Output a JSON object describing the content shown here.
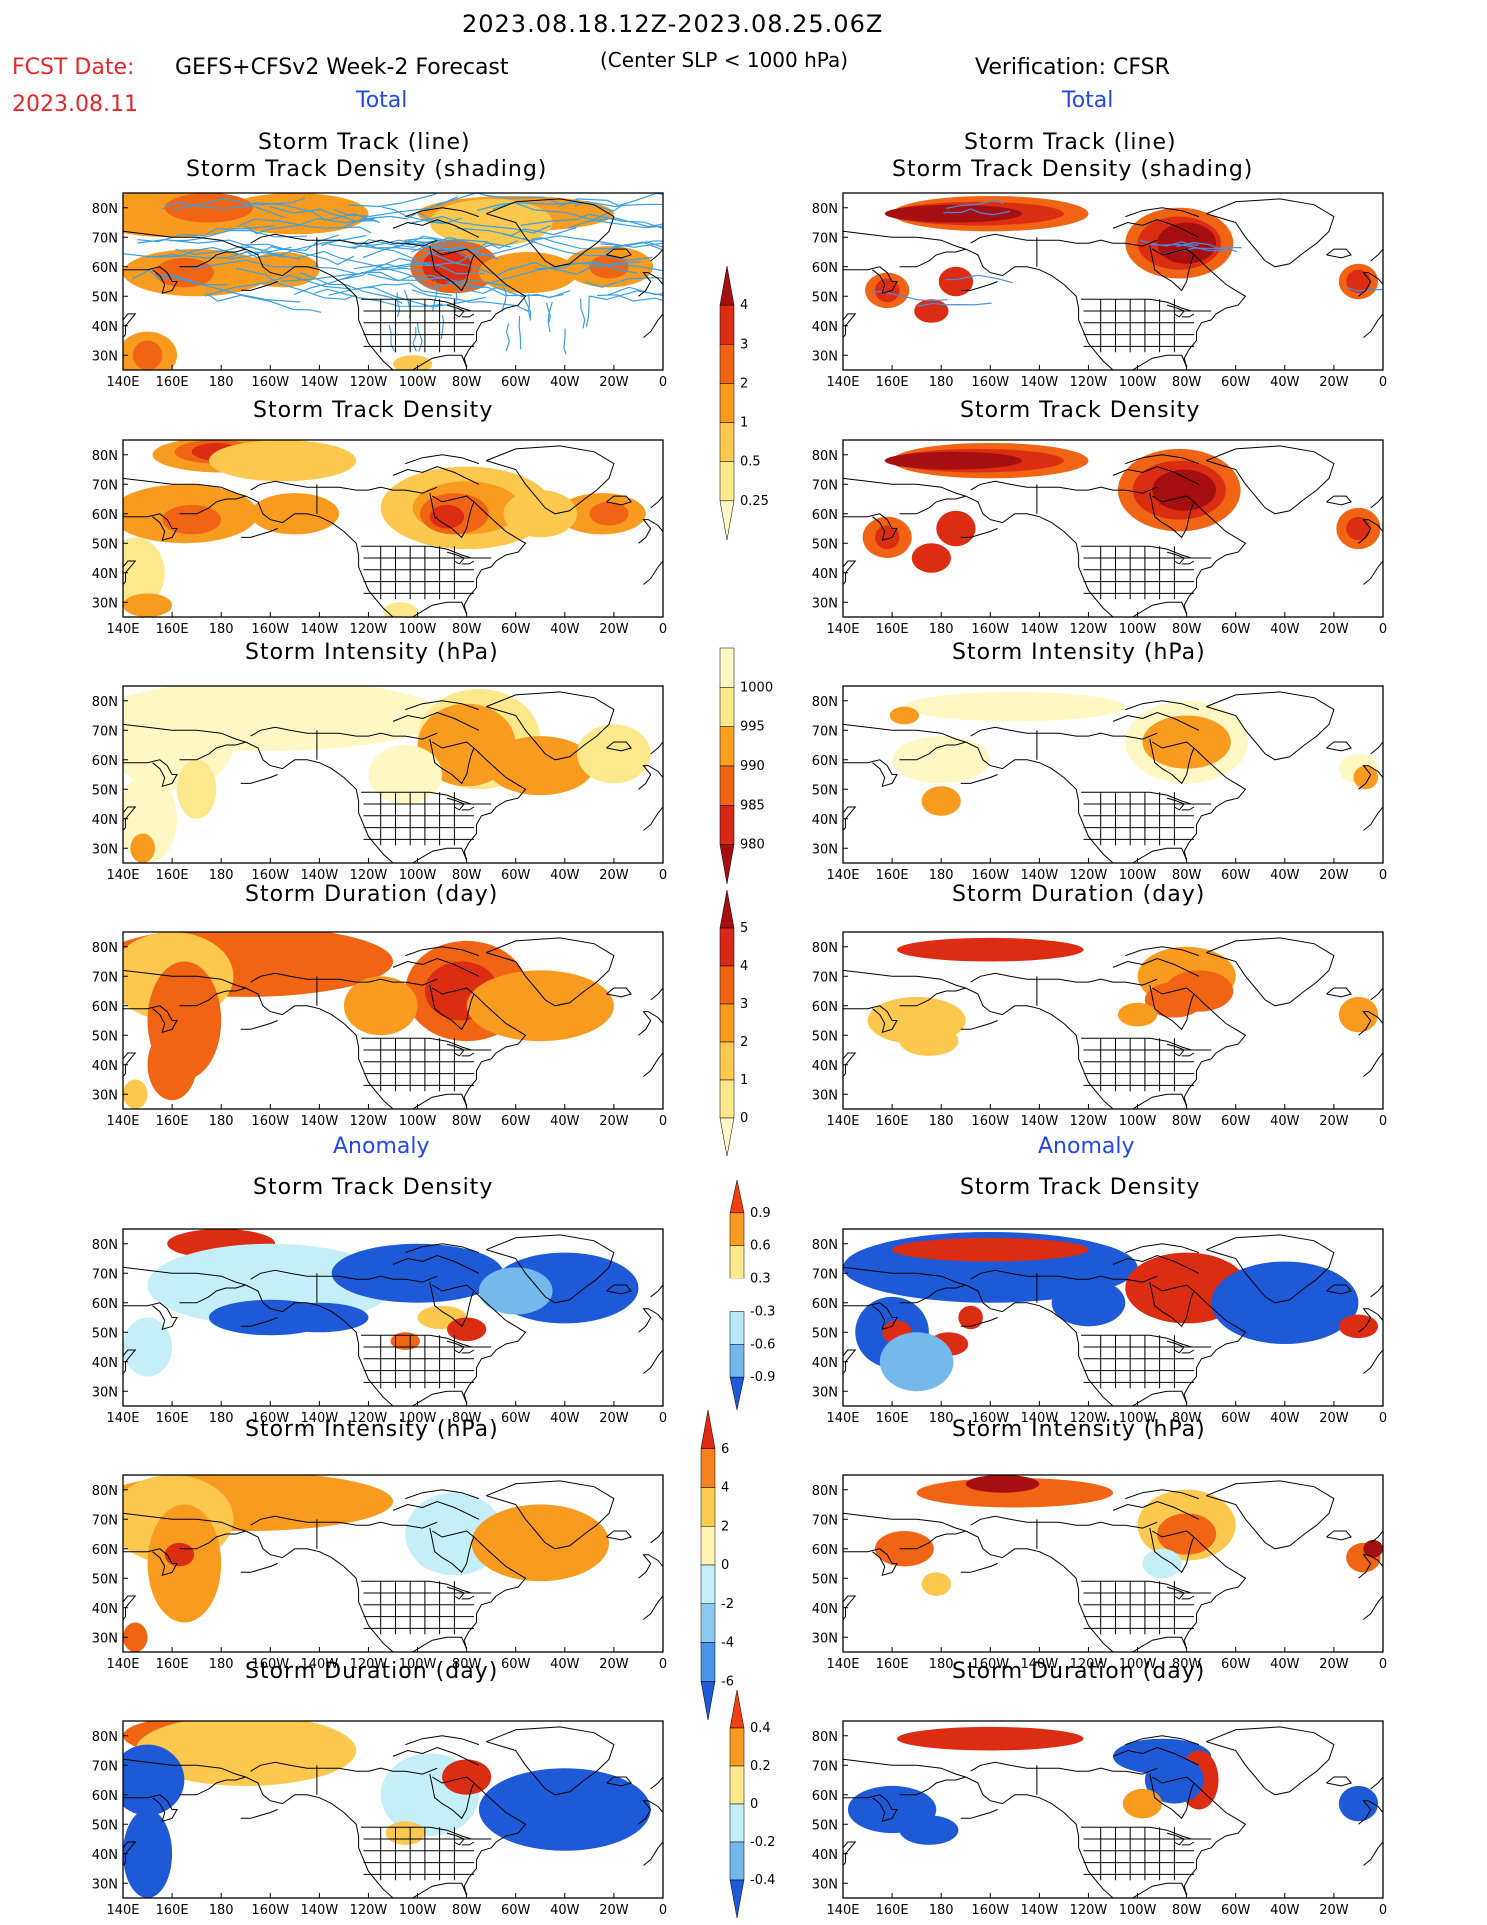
{
  "header": {
    "period": "2023.08.18.12Z-2023.08.25.06Z",
    "fcst_label": "FCST Date:",
    "fcst_date": "2023.08.11",
    "model": "GEFS+CFSv2 Week-2 Forecast",
    "criterion": "(Center SLP < 1000 hPa)",
    "verification": "Verification: CFSR"
  },
  "sections": {
    "total": "Total",
    "anomaly": "Anomaly"
  },
  "panel_titles": {
    "track_line": "Storm Track (line)",
    "track_density_shading": "Storm Track Density (shading)",
    "track_density": "Storm Track Density",
    "intensity": "Storm Intensity (hPa)",
    "duration": "Storm Duration (day)"
  },
  "axes": {
    "x_ticks": [
      "140E",
      "160E",
      "180",
      "160W",
      "140W",
      "120W",
      "100W",
      "80W",
      "60W",
      "40W",
      "20W",
      "0"
    ],
    "y_ticks": [
      "80N",
      "70N",
      "60N",
      "50N",
      "40N",
      "30N"
    ]
  },
  "colorbars": {
    "density_total": {
      "labels": [
        "4",
        "3",
        "2",
        "1",
        "0.5",
        "0.25"
      ],
      "colors": [
        "#a50f0f",
        "#dc2d12",
        "#f06414",
        "#f99b1e",
        "#fcc84e",
        "#fde98c",
        "#fff8c4"
      ]
    },
    "intensity_total": {
      "labels": [
        "1000",
        "995",
        "990",
        "985",
        "980"
      ],
      "colors": [
        "#fff8c4",
        "#fde98c",
        "#f9a11e",
        "#f06414",
        "#d8281a",
        "#a50f0f"
      ]
    },
    "duration_total": {
      "labels": [
        "5",
        "4",
        "3",
        "2",
        "1",
        "0"
      ],
      "colors": [
        "#a50f0f",
        "#d8281a",
        "#f06414",
        "#f99b1e",
        "#fcc84e",
        "#fde98c",
        "#fff8c4"
      ]
    },
    "density_anom": {
      "labels": [
        "0.9",
        "0.6",
        "0.3",
        "-0.3",
        "-0.6",
        "-0.9"
      ],
      "colors": [
        "#f03d12",
        "#f99b1e",
        "#fde98c",
        "#ffffff",
        "#b8e8f8",
        "#74b8ec",
        "#1e5ad8"
      ]
    },
    "intensity_anom": {
      "labels": [
        "6",
        "4",
        "2",
        "0",
        "-2",
        "-4",
        "-6"
      ],
      "colors": [
        "#e02a12",
        "#f5821e",
        "#fdcb4e",
        "#fff4b0",
        "#c4eef8",
        "#8ccaf0",
        "#4a94e8",
        "#1e5ad8"
      ]
    },
    "duration_anom": {
      "labels": [
        "0.4",
        "0.2",
        "0",
        "-0.2",
        "-0.4"
      ],
      "colors": [
        "#f03d12",
        "#f99b1e",
        "#fde98c",
        "#c4eef8",
        "#74b8ec",
        "#1e5ad8"
      ]
    }
  },
  "chart_data": [
    {
      "type": "heatmap",
      "panel": "forecast-total-track",
      "title": "Storm Track (line) / Storm Track Density (shading)",
      "xlim": [
        "140E",
        "0"
      ],
      "ylim": [
        "25N",
        "85N"
      ],
      "features": [
        {
          "region": "Arctic north of Siberia/Alaska",
          "level": 3
        },
        {
          "region": "Hudson Bay",
          "level": 3
        },
        {
          "region": "North Atlantic",
          "level": 2
        },
        {
          "region": "Bering Sea / Aleutians",
          "level": 2
        },
        {
          "region": "NW Pacific",
          "level": 2
        }
      ]
    },
    {
      "type": "heatmap",
      "panel": "verification-total-track",
      "title": "Storm Track (line) / Storm Track Density (shading)",
      "xlim": [
        "140E",
        "0"
      ],
      "ylim": [
        "25N",
        "85N"
      ],
      "features": [
        {
          "region": "Arctic coast Alaska/Yukon",
          "level": 4
        },
        {
          "region": "Hudson Bay",
          "level": 4
        },
        {
          "region": "Kamchatka",
          "level": 3
        },
        {
          "region": "Bering Sea",
          "level": 3
        },
        {
          "region": "NE Atlantic near 10W",
          "level": 3
        }
      ]
    },
    {
      "type": "heatmap",
      "panel": "forecast-total-intensity",
      "title": "Storm Intensity (hPa)",
      "features": [
        {
          "region": "Hudson Bay / Labrador",
          "value": 995
        },
        {
          "region": "Arctic",
          "value": 1000
        }
      ]
    },
    {
      "type": "heatmap",
      "panel": "verification-total-intensity",
      "title": "Storm Intensity (hPa)",
      "features": [
        {
          "region": "Hudson Bay",
          "value": 995
        },
        {
          "region": "Bering Sea",
          "value": 995
        }
      ]
    },
    {
      "type": "heatmap",
      "panel": "forecast-total-duration",
      "title": "Storm Duration (day)",
      "features": [
        {
          "region": "Arctic / Canada",
          "value": 3
        },
        {
          "region": "Hudson Bay",
          "value": 4
        }
      ]
    },
    {
      "type": "heatmap",
      "panel": "verification-total-duration",
      "title": "Storm Duration (day)",
      "features": [
        {
          "region": "Arctic Alaska",
          "value": 5
        },
        {
          "region": "Hudson Bay",
          "value": 4
        }
      ]
    },
    {
      "type": "heatmap",
      "panel": "forecast-anom-density",
      "title": "Storm Track Density",
      "features": [
        {
          "region": "Arctic north of Bering",
          "value": 0.9
        },
        {
          "region": "NE Pacific",
          "value": -0.9
        },
        {
          "region": "Greenland/Atlantic",
          "value": -0.9
        }
      ]
    },
    {
      "type": "heatmap",
      "panel": "verification-anom-density",
      "title": "Storm Track Density",
      "features": [
        {
          "region": "Arctic Alaska",
          "value": 0.9
        },
        {
          "region": "Hudson Bay",
          "value": 0.9
        },
        {
          "region": "North Pacific",
          "value": -0.9
        }
      ]
    },
    {
      "type": "heatmap",
      "panel": "forecast-anom-intensity",
      "title": "Storm Intensity (hPa)",
      "features": [
        {
          "region": "Arctic / Pacific",
          "value": 4
        },
        {
          "region": "Central Canada",
          "value": 0
        }
      ]
    },
    {
      "type": "heatmap",
      "panel": "verification-anom-intensity",
      "title": "Storm Intensity (hPa)",
      "features": [
        {
          "region": "Arctic Alaska",
          "value": 6
        },
        {
          "region": "Kamchatka",
          "value": 6
        }
      ]
    },
    {
      "type": "heatmap",
      "panel": "forecast-anom-duration",
      "title": "Storm Duration (day)",
      "features": [
        {
          "region": "Arctic",
          "value": 0.4
        },
        {
          "region": "North Atlantic",
          "value": -0.4
        }
      ]
    },
    {
      "type": "heatmap",
      "panel": "verification-anom-duration",
      "title": "Storm Duration (day)",
      "features": [
        {
          "region": "Arctic Alaska",
          "value": 0.4
        },
        {
          "region": "Hudson Bay",
          "value": -0.4
        }
      ]
    }
  ]
}
